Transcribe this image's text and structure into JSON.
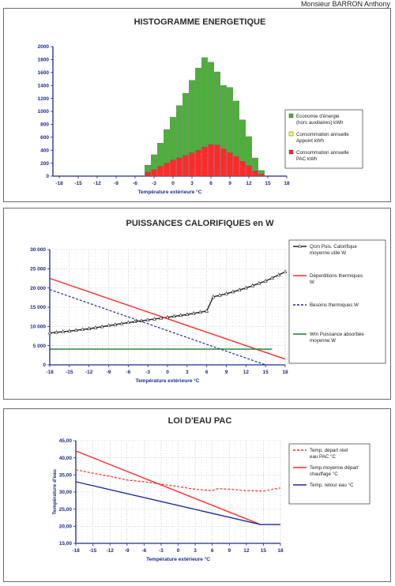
{
  "author": "Monsieur BARRON Anthony",
  "chart_data": [
    {
      "type": "bar",
      "title": "HISTOGRAMME ENERGETIQUE",
      "xlabel": "Température extérieure °C",
      "ylabel": "",
      "xlim": [
        -19,
        18
      ],
      "ylim": [
        0,
        2000
      ],
      "x_ticks": [
        "-18",
        "-15",
        "-12",
        "-9",
        "-6",
        "-3",
        "0",
        "3",
        "6",
        "9",
        "12",
        "15",
        "18"
      ],
      "y_ticks": [
        "0",
        "200",
        "400",
        "600",
        "800",
        "1000",
        "1200",
        "1400",
        "1600",
        "1800",
        "2000"
      ],
      "stacked": true,
      "x": [
        -4,
        -3,
        -2,
        -1,
        0,
        1,
        2,
        3,
        4,
        5,
        6,
        7,
        8,
        9,
        10,
        11,
        12,
        13,
        14
      ],
      "series": [
        {
          "name": "Consommation annuelle PAC kWh",
          "color": "#ff2a2a",
          "values": [
            60,
            100,
            150,
            200,
            250,
            280,
            320,
            360,
            400,
            450,
            490,
            480,
            420,
            360,
            300,
            230,
            160,
            80,
            30
          ]
        },
        {
          "name": "Consommation annuelle Appoint kWh",
          "color": "#ffff44",
          "values": [
            0,
            0,
            0,
            0,
            0,
            0,
            0,
            0,
            0,
            0,
            0,
            0,
            0,
            0,
            0,
            0,
            0,
            0,
            0
          ]
        },
        {
          "name": "Economie d'énergie (hors auxiliaires) kWh",
          "color": "#4caf3a",
          "values": [
            110,
            230,
            360,
            520,
            660,
            810,
            960,
            1120,
            1270,
            1380,
            1270,
            1130,
            980,
            1010,
            860,
            640,
            450,
            200,
            60
          ]
        }
      ],
      "legend_position": "right"
    },
    {
      "type": "line",
      "title": "PUISSANCES CALORIFIQUES en W",
      "xlabel": "Température extérieure °C",
      "ylabel": "",
      "xlim": [
        -18,
        18
      ],
      "ylim": [
        0,
        30000
      ],
      "x_ticks": [
        "-18",
        "-15",
        "-12",
        "-9",
        "-6",
        "-3",
        "0",
        "3",
        "6",
        "9",
        "12",
        "15",
        "18"
      ],
      "y_ticks": [
        "0",
        "5 000",
        "10 000",
        "15 000",
        "20 000",
        "25 000",
        "30 000"
      ],
      "series": [
        {
          "name": "Qcm Puis. Calorifique moyenne utile W",
          "color": "#222222",
          "style": "solid-triangles",
          "x": [
            -18,
            -15,
            -12,
            -9,
            -6,
            -3,
            0,
            3,
            6,
            7,
            9,
            12,
            15,
            18
          ],
          "y": [
            8300,
            8800,
            9400,
            10200,
            11000,
            11700,
            12400,
            13100,
            14000,
            17700,
            18500,
            20000,
            21800,
            24200
          ]
        },
        {
          "name": "Déperditions thermiques W",
          "color": "#ff2a2a",
          "style": "solid",
          "x": [
            -18,
            18
          ],
          "y": [
            22500,
            1500
          ]
        },
        {
          "name": "Besoins thermiques W",
          "color": "#1a2d9a",
          "style": "dashed",
          "x": [
            -18,
            15
          ],
          "y": [
            19600,
            0
          ]
        },
        {
          "name": "Wm Puissance absorbée moyenne W",
          "color": "#1f7a2a",
          "style": "solid",
          "x": [
            -18,
            16
          ],
          "y": [
            4100,
            4100
          ]
        }
      ],
      "legend_position": "right"
    },
    {
      "type": "line",
      "title": "LOI D'EAU PAC",
      "xlabel": "Température extérieure °C",
      "ylabel": "Température d'eau",
      "xlim": [
        -18,
        18
      ],
      "ylim": [
        15,
        45
      ],
      "x_ticks": [
        "-18",
        "-15",
        "-12",
        "-9",
        "-6",
        "-3",
        "0",
        "3",
        "6",
        "9",
        "12",
        "15",
        "18"
      ],
      "y_ticks": [
        "15,00",
        "20,00",
        "25,00",
        "30,00",
        "35,00",
        "40,00",
        "45,00"
      ],
      "series": [
        {
          "name": "Temp. départ réel eau PAC °C",
          "color": "#ff2a2a",
          "style": "dashed",
          "x": [
            -18,
            -15,
            -12,
            -9,
            -6,
            -3,
            0,
            3,
            6,
            7,
            9,
            12,
            15,
            18
          ],
          "y": [
            36.5,
            35.5,
            34.6,
            33.5,
            33.0,
            32.3,
            31.6,
            30.8,
            30.4,
            31.0,
            30.8,
            30.4,
            30.3,
            31.2
          ]
        },
        {
          "name": "Temp.moyenne départ chauffage °C",
          "color": "#ff2a2a",
          "style": "solid",
          "x": [
            -18,
            14.5
          ],
          "y": [
            42,
            20.5
          ]
        },
        {
          "name": "Temp. retour eau °C",
          "color": "#1a2d9a",
          "style": "solid",
          "x": [
            -18,
            14.5,
            18
          ],
          "y": [
            33,
            20.5,
            20.5
          ]
        }
      ],
      "legend_position": "right"
    }
  ]
}
